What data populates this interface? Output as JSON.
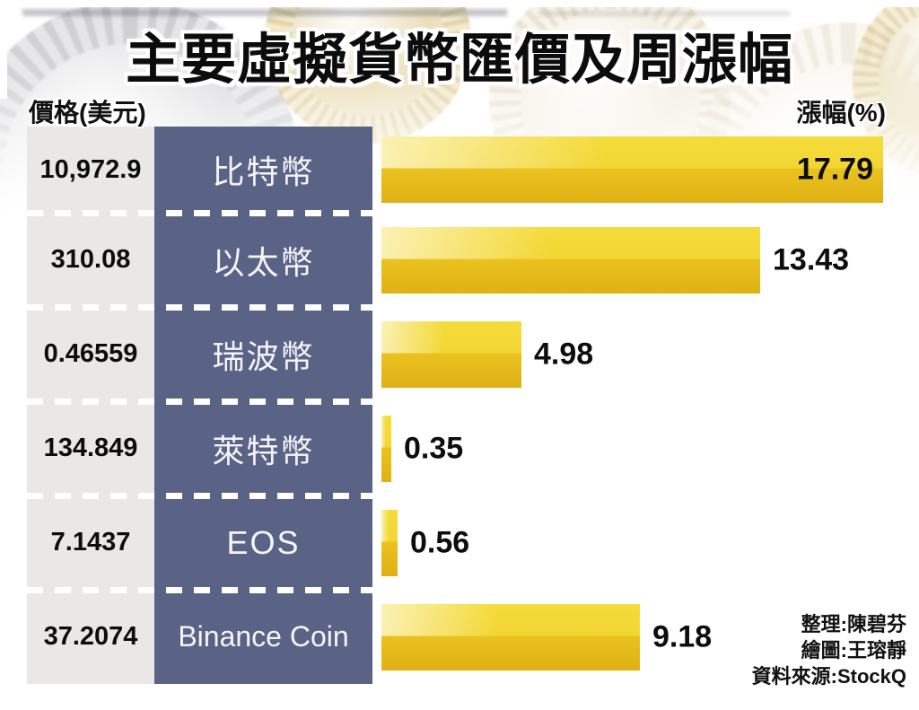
{
  "title": "主要虛擬貨幣匯價及周漲幅",
  "headers": {
    "price": "價格(美元)",
    "change": "漲幅(%)"
  },
  "rows": [
    {
      "name": "比特幣",
      "price": "10,972.9",
      "change": "17.79",
      "change_value": 17.79,
      "label_inside": true
    },
    {
      "name": "以太幣",
      "price": "310.08",
      "change": "13.43",
      "change_value": 13.43,
      "label_inside": false
    },
    {
      "name": "瑞波幣",
      "price": "0.46559",
      "change": "4.98",
      "change_value": 4.98,
      "label_inside": false
    },
    {
      "name": "萊特幣",
      "price": "134.849",
      "change": "0.35",
      "change_value": 0.35,
      "label_inside": false
    },
    {
      "name": "EOS",
      "price": "7.1437",
      "change": "0.56",
      "change_value": 0.56,
      "label_inside": false
    },
    {
      "name": "Binance Coin",
      "price": "37.2074",
      "change": "9.18",
      "change_value": 9.18,
      "label_inside": false
    }
  ],
  "credits": {
    "editor": "整理:陳碧芬",
    "illustrator": "繪圖:王瑢靜",
    "source": "資料來源:StockQ"
  },
  "colors": {
    "bar_gold_light": "#f4dc3a",
    "bar_gold_dark": "#e2b818",
    "name_column_slate": "#5a6285",
    "price_column_gray": "#e9e8e6",
    "text_black": "#0d0d0d",
    "divider_white": "#ffffff"
  },
  "chart_data": {
    "type": "bar",
    "orientation": "horizontal",
    "title": "主要虛擬貨幣匯價及周漲幅",
    "categories": [
      "比特幣",
      "以太幣",
      "瑞波幣",
      "萊特幣",
      "EOS",
      "Binance Coin"
    ],
    "series": [
      {
        "name": "價格(美元)",
        "values": [
          10972.9,
          310.08,
          0.46559,
          134.849,
          7.1437,
          37.2074
        ]
      },
      {
        "name": "漲幅(%)",
        "values": [
          17.79,
          13.43,
          4.98,
          0.35,
          0.56,
          9.18
        ]
      }
    ],
    "value_labels": true,
    "xlabel": "漲幅(%)",
    "ylabel": "",
    "xlim": [
      0,
      18
    ],
    "grid": false,
    "legend": false,
    "source": "StockQ"
  }
}
